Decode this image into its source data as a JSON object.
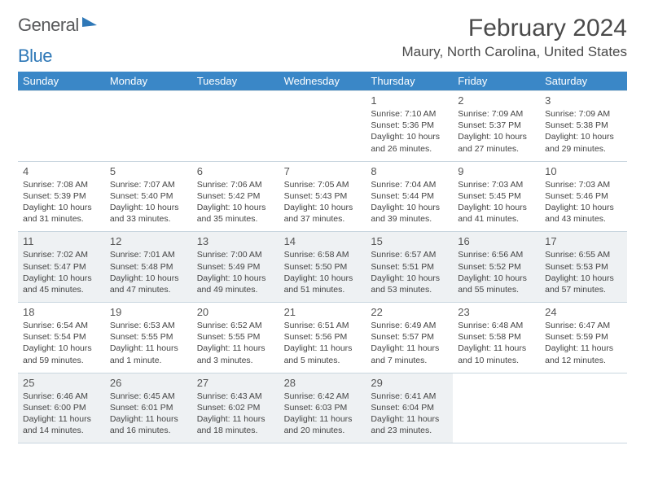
{
  "brand": {
    "word1": "General",
    "word2": "Blue",
    "color_gray": "#58595b",
    "color_blue": "#2f78b7"
  },
  "title": "February 2024",
  "location": "Maury, North Carolina, United States",
  "header_bg": "#3a87c7",
  "alt_row_bg": "#eef1f3",
  "border_color": "#c9d6df",
  "day_names": [
    "Sunday",
    "Monday",
    "Tuesday",
    "Wednesday",
    "Thursday",
    "Friday",
    "Saturday"
  ],
  "weeks": [
    [
      null,
      null,
      null,
      null,
      {
        "n": "1",
        "sr": "7:10 AM",
        "ss": "5:36 PM",
        "dl": "10 hours and 26 minutes."
      },
      {
        "n": "2",
        "sr": "7:09 AM",
        "ss": "5:37 PM",
        "dl": "10 hours and 27 minutes."
      },
      {
        "n": "3",
        "sr": "7:09 AM",
        "ss": "5:38 PM",
        "dl": "10 hours and 29 minutes."
      }
    ],
    [
      {
        "n": "4",
        "sr": "7:08 AM",
        "ss": "5:39 PM",
        "dl": "10 hours and 31 minutes."
      },
      {
        "n": "5",
        "sr": "7:07 AM",
        "ss": "5:40 PM",
        "dl": "10 hours and 33 minutes."
      },
      {
        "n": "6",
        "sr": "7:06 AM",
        "ss": "5:42 PM",
        "dl": "10 hours and 35 minutes."
      },
      {
        "n": "7",
        "sr": "7:05 AM",
        "ss": "5:43 PM",
        "dl": "10 hours and 37 minutes."
      },
      {
        "n": "8",
        "sr": "7:04 AM",
        "ss": "5:44 PM",
        "dl": "10 hours and 39 minutes."
      },
      {
        "n": "9",
        "sr": "7:03 AM",
        "ss": "5:45 PM",
        "dl": "10 hours and 41 minutes."
      },
      {
        "n": "10",
        "sr": "7:03 AM",
        "ss": "5:46 PM",
        "dl": "10 hours and 43 minutes."
      }
    ],
    [
      {
        "n": "11",
        "sr": "7:02 AM",
        "ss": "5:47 PM",
        "dl": "10 hours and 45 minutes."
      },
      {
        "n": "12",
        "sr": "7:01 AM",
        "ss": "5:48 PM",
        "dl": "10 hours and 47 minutes."
      },
      {
        "n": "13",
        "sr": "7:00 AM",
        "ss": "5:49 PM",
        "dl": "10 hours and 49 minutes."
      },
      {
        "n": "14",
        "sr": "6:58 AM",
        "ss": "5:50 PM",
        "dl": "10 hours and 51 minutes."
      },
      {
        "n": "15",
        "sr": "6:57 AM",
        "ss": "5:51 PM",
        "dl": "10 hours and 53 minutes."
      },
      {
        "n": "16",
        "sr": "6:56 AM",
        "ss": "5:52 PM",
        "dl": "10 hours and 55 minutes."
      },
      {
        "n": "17",
        "sr": "6:55 AM",
        "ss": "5:53 PM",
        "dl": "10 hours and 57 minutes."
      }
    ],
    [
      {
        "n": "18",
        "sr": "6:54 AM",
        "ss": "5:54 PM",
        "dl": "10 hours and 59 minutes."
      },
      {
        "n": "19",
        "sr": "6:53 AM",
        "ss": "5:55 PM",
        "dl": "11 hours and 1 minute."
      },
      {
        "n": "20",
        "sr": "6:52 AM",
        "ss": "5:55 PM",
        "dl": "11 hours and 3 minutes."
      },
      {
        "n": "21",
        "sr": "6:51 AM",
        "ss": "5:56 PM",
        "dl": "11 hours and 5 minutes."
      },
      {
        "n": "22",
        "sr": "6:49 AM",
        "ss": "5:57 PM",
        "dl": "11 hours and 7 minutes."
      },
      {
        "n": "23",
        "sr": "6:48 AM",
        "ss": "5:58 PM",
        "dl": "11 hours and 10 minutes."
      },
      {
        "n": "24",
        "sr": "6:47 AM",
        "ss": "5:59 PM",
        "dl": "11 hours and 12 minutes."
      }
    ],
    [
      {
        "n": "25",
        "sr": "6:46 AM",
        "ss": "6:00 PM",
        "dl": "11 hours and 14 minutes."
      },
      {
        "n": "26",
        "sr": "6:45 AM",
        "ss": "6:01 PM",
        "dl": "11 hours and 16 minutes."
      },
      {
        "n": "27",
        "sr": "6:43 AM",
        "ss": "6:02 PM",
        "dl": "11 hours and 18 minutes."
      },
      {
        "n": "28",
        "sr": "6:42 AM",
        "ss": "6:03 PM",
        "dl": "11 hours and 20 minutes."
      },
      {
        "n": "29",
        "sr": "6:41 AM",
        "ss": "6:04 PM",
        "dl": "11 hours and 23 minutes."
      },
      null,
      null
    ]
  ],
  "labels": {
    "sunrise": "Sunrise:",
    "sunset": "Sunset:",
    "daylight": "Daylight:"
  }
}
